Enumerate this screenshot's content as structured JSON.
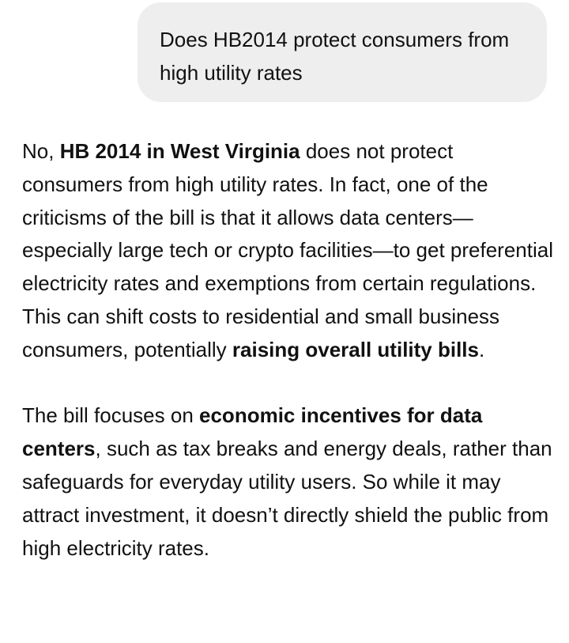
{
  "user_message": {
    "text": "Does HB2014 protect consumers from high utility rates"
  },
  "assistant_message": {
    "paragraph_1": {
      "t1": "No, ",
      "b1": "HB 2014 in West Virginia",
      "t2": " does not protect consumers from high utility rates. In fact, one of the criticisms of the bill is that it allows data centers—especially large tech or crypto facilities—to get preferential electricity rates and exemptions from certain regulations. This can shift costs to residential and small business consumers, potentially ",
      "b2": "raising overall utility bills",
      "t3": "."
    },
    "paragraph_2": {
      "t1": "The bill focuses on ",
      "b1": "economic incentives for data centers",
      "t2": ", such as tax breaks and energy deals, rather than safeguards for everyday utility users. So while it may attract investment, it doesn’t directly shield the public from high electricity rates."
    }
  }
}
